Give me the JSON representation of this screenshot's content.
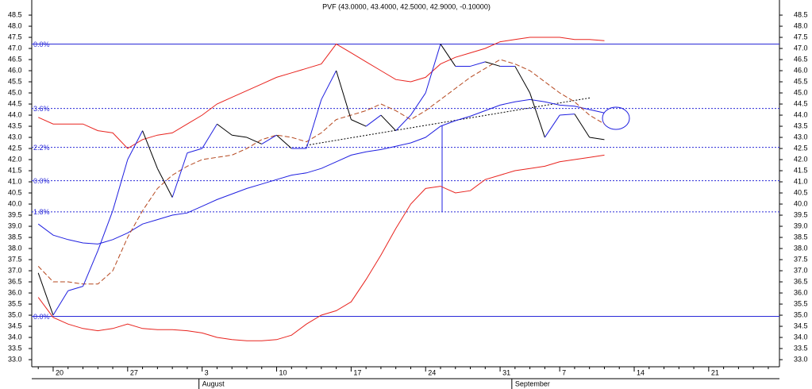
{
  "chart_data": {
    "type": "line",
    "title": "PVF (43.0000, 43.4000, 42.5000, 42.9000, -0.10000)",
    "categories": [
      null,
      "20",
      null,
      null,
      null,
      null,
      "27",
      null,
      null,
      null,
      null,
      "3",
      null,
      null,
      null,
      null,
      "10",
      null,
      null,
      null,
      null,
      "17",
      null,
      null,
      null,
      null,
      "24",
      null,
      null,
      null,
      null,
      "31",
      null,
      null,
      null,
      "7",
      null,
      null,
      null,
      null,
      "14",
      null,
      null,
      null,
      null,
      "21",
      null,
      null,
      null,
      null
    ],
    "month_categories": [
      null,
      null,
      null,
      null,
      null,
      null,
      null,
      null,
      null,
      null,
      null,
      "August",
      null,
      null,
      null,
      null,
      null,
      null,
      null,
      null,
      null,
      null,
      null,
      null,
      null,
      null,
      null,
      null,
      null,
      null,
      null,
      null,
      "September",
      null,
      null,
      null,
      null,
      null,
      null,
      null,
      null,
      null,
      null,
      null,
      null,
      null,
      null,
      null,
      null,
      null
    ],
    "price": {
      "up_color": "#1f1fe0",
      "down_color": "#000000",
      "values": [
        36.9,
        35.0,
        36.1,
        36.3,
        37.9,
        39.7,
        42.0,
        43.3,
        41.6,
        40.3,
        42.3,
        42.5,
        43.6,
        43.1,
        43.0,
        42.7,
        43.1,
        42.5,
        42.5,
        44.7,
        46.0,
        43.8,
        43.5,
        44.0,
        43.3,
        44.0,
        45.0,
        47.2,
        46.2,
        46.2,
        46.4,
        46.2,
        46.2,
        45.0,
        43.0,
        44.0,
        44.05,
        43.0,
        42.9,
        null,
        null,
        null,
        null,
        null,
        null,
        null,
        null,
        null,
        null,
        null
      ]
    },
    "series": [
      {
        "color": "#e8231e",
        "dash": "none",
        "values": [
          43.9,
          43.6,
          43.6,
          43.6,
          43.3,
          43.2,
          42.5,
          42.9,
          43.1,
          43.2,
          43.6,
          44.0,
          44.5,
          44.8,
          45.1,
          45.4,
          45.7,
          45.9,
          46.1,
          46.3,
          47.2,
          46.8,
          46.4,
          46.0,
          45.6,
          45.5,
          45.7,
          46.3,
          46.6,
          46.8,
          47.0,
          47.3,
          47.4,
          47.5,
          47.5,
          47.5,
          47.4,
          47.4,
          47.35,
          null,
          null,
          null,
          null,
          null,
          null,
          null,
          null,
          null,
          null,
          null
        ]
      },
      {
        "color": "#e8231e",
        "dash": "none",
        "values": [
          35.8,
          34.9,
          34.6,
          34.4,
          34.3,
          34.4,
          34.6,
          34.4,
          34.35,
          34.35,
          34.3,
          34.2,
          34.0,
          33.9,
          33.85,
          33.85,
          33.9,
          34.1,
          34.6,
          35.0,
          35.2,
          35.6,
          36.6,
          37.7,
          38.9,
          40.0,
          40.7,
          40.8,
          40.5,
          40.6,
          41.1,
          41.3,
          41.5,
          41.6,
          41.7,
          41.9,
          42.0,
          42.1,
          42.2,
          null,
          null,
          null,
          null,
          null,
          null,
          null,
          null,
          null,
          null,
          null
        ]
      },
      {
        "color": "#1f1fe0",
        "dash": "none",
        "values": [
          39.1,
          38.6,
          38.4,
          38.25,
          38.2,
          38.4,
          38.7,
          39.1,
          39.3,
          39.5,
          39.6,
          39.9,
          40.2,
          40.45,
          40.7,
          40.9,
          41.1,
          41.3,
          41.4,
          41.6,
          41.9,
          42.2,
          42.35,
          42.45,
          42.6,
          42.75,
          43.0,
          43.5,
          43.75,
          43.95,
          44.2,
          44.45,
          44.6,
          44.7,
          44.6,
          44.45,
          44.4,
          44.25,
          44.1,
          null,
          null,
          null,
          null,
          null,
          null,
          null,
          null,
          null,
          null,
          null
        ]
      },
      {
        "color": "#b5471e",
        "dash": "6 3",
        "values": [
          37.2,
          36.5,
          36.5,
          36.4,
          36.4,
          37.0,
          38.5,
          39.7,
          40.7,
          41.3,
          41.7,
          42.0,
          42.1,
          42.2,
          42.5,
          42.9,
          43.1,
          43.0,
          42.8,
          43.2,
          43.8,
          44.0,
          44.2,
          44.5,
          44.2,
          43.8,
          44.2,
          44.7,
          45.2,
          45.7,
          46.1,
          46.5,
          46.3,
          46.0,
          45.5,
          45.0,
          44.6,
          44.0,
          43.6,
          null,
          null,
          null,
          null,
          null,
          null,
          null,
          null,
          null,
          null,
          null
        ]
      }
    ],
    "levels": [
      {
        "value": 47.2,
        "label": "0.0%"
      },
      {
        "value": 44.3,
        "label": "3.6%"
      },
      {
        "value": 42.55,
        "label": "2.2%"
      },
      {
        "value": 41.05,
        "label": "0.0%"
      },
      {
        "value": 39.65,
        "label": "1.8%"
      },
      {
        "value": 34.95,
        "label": "0.0%"
      }
    ],
    "level_styles": [
      "solid",
      "dotted",
      "dotted",
      "dotted",
      "dotted",
      "solid"
    ],
    "level_color": "#2a2ad8",
    "ylim": [
      32.68,
      49.18
    ],
    "yticks": [
      {
        "value": 33,
        "label": "33.0"
      },
      {
        "value": 33.5,
        "label": "33.5"
      },
      {
        "value": 34,
        "label": "34.0"
      },
      {
        "value": 34.5,
        "label": "34.5"
      },
      {
        "value": 35,
        "label": "35.0"
      },
      {
        "value": 35.5,
        "label": "35.5"
      },
      {
        "value": 36,
        "label": "36.0"
      },
      {
        "value": 36.5,
        "label": "36.5"
      },
      {
        "value": 37,
        "label": "37.0"
      },
      {
        "value": 37.5,
        "label": "37.5"
      },
      {
        "value": 38,
        "label": "38.0"
      },
      {
        "value": 38.5,
        "label": "38.5"
      },
      {
        "value": 39,
        "label": "39.0"
      },
      {
        "value": 39.5,
        "label": "39.5"
      },
      {
        "value": 40,
        "label": "40.0"
      },
      {
        "value": 40.5,
        "label": "40.5"
      },
      {
        "value": 41,
        "label": "41.0"
      },
      {
        "value": 41.5,
        "label": "41.5"
      },
      {
        "value": 42,
        "label": "42.0"
      },
      {
        "value": 42.5,
        "label": "42.5"
      },
      {
        "value": 43,
        "label": "43.0"
      },
      {
        "value": 43.5,
        "label": "43.5"
      },
      {
        "value": 44,
        "label": "44.0"
      },
      {
        "value": 44.5,
        "label": "44.5"
      },
      {
        "value": 45,
        "label": "45.0"
      },
      {
        "value": 45.5,
        "label": "45.5"
      },
      {
        "value": 46,
        "label": "46.0"
      },
      {
        "value": 46.5,
        "label": "46.5"
      },
      {
        "value": 47,
        "label": "47.0"
      },
      {
        "value": 47.5,
        "label": "47.5"
      },
      {
        "value": 48,
        "label": "48.0"
      },
      {
        "value": 48.5,
        "label": "48.5"
      }
    ]
  }
}
